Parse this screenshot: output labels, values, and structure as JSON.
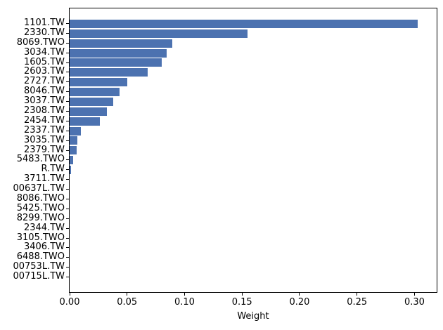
{
  "figure": {
    "background": "#ffffff",
    "spine_color": "#000000",
    "text_color": "#000000"
  },
  "chart_data": {
    "type": "bar",
    "orientation": "horizontal",
    "title": "",
    "xlabel": "Weight",
    "ylabel": "",
    "grid": false,
    "legend": null,
    "bar_color": "#4c72b0",
    "xlim": [
      0,
      0.3193
    ],
    "categories": [
      "1101.TW",
      "2330.TW",
      "8069.TWO",
      "3034.TW",
      "1605.TW",
      "2603.TW",
      "2727.TW",
      "8046.TW",
      "3037.TW",
      "2308.TW",
      "2454.TW",
      "2337.TW",
      "3035.TW",
      "2379.TW",
      "5483.TWO",
      "R.TW",
      "3711.TW",
      "00637L.TW",
      "8086.TWO",
      "5425.TWO",
      "8299.TWO",
      "2344.TW",
      "3105.TWO",
      "3406.TW",
      "6488.TWO",
      "00753L.TW",
      "00715L.TW"
    ],
    "values": [
      0.303,
      0.155,
      0.0896,
      0.0847,
      0.0804,
      0.0676,
      0.0502,
      0.0437,
      0.0382,
      0.0327,
      0.026,
      0.0096,
      0.007,
      0.0063,
      0.003,
      0.001,
      0,
      0,
      0,
      0,
      0,
      0,
      0,
      0,
      0,
      0,
      0
    ],
    "x_tick_values": [
      0,
      0.05,
      0.1,
      0.15,
      0.2,
      0.25,
      0.3
    ],
    "x_tick_labels": [
      "0.00",
      "0.05",
      "0.10",
      "0.15",
      "0.20",
      "0.25",
      "0.30"
    ]
  }
}
